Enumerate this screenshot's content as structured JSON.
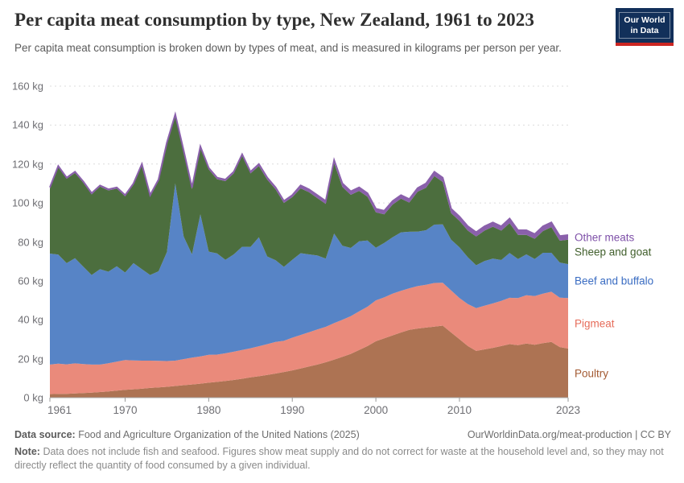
{
  "header": {
    "title": "Per capita meat consumption by type, New Zealand, 1961 to 2023",
    "subtitle": "Per capita meat consumption is broken down by types of meat, and is measured in kilograms per person per year.",
    "logo_line1": "Our World",
    "logo_line2": "in Data",
    "logo_bg": "#12305a",
    "logo_accent": "#cb2622"
  },
  "chart_data": {
    "type": "area",
    "stacked": true,
    "title": "Per capita meat consumption by type, New Zealand, 1961 to 2023",
    "unit": "kg per person per year",
    "xlabel": "",
    "ylabel": "kg",
    "ylim": [
      0,
      160
    ],
    "grid": "horizontal-dashed",
    "legend_position": "right-of-areas",
    "x_ticks": [
      1961,
      1970,
      1980,
      1990,
      2000,
      2010,
      2023
    ],
    "y_ticks": [
      {
        "value": 0,
        "label": "0 kg"
      },
      {
        "value": 20,
        "label": "20 kg"
      },
      {
        "value": 40,
        "label": "40 kg"
      },
      {
        "value": 60,
        "label": "60 kg"
      },
      {
        "value": 80,
        "label": "80 kg"
      },
      {
        "value": 100,
        "label": "100 kg"
      },
      {
        "value": 120,
        "label": "120 kg"
      },
      {
        "value": 140,
        "label": "140 kg"
      },
      {
        "value": 160,
        "label": "160 kg"
      }
    ],
    "years": [
      1961,
      1962,
      1963,
      1964,
      1965,
      1966,
      1967,
      1968,
      1969,
      1970,
      1971,
      1972,
      1973,
      1974,
      1975,
      1976,
      1977,
      1978,
      1979,
      1980,
      1981,
      1982,
      1983,
      1984,
      1985,
      1986,
      1987,
      1988,
      1989,
      1990,
      1991,
      1992,
      1993,
      1994,
      1995,
      1996,
      1997,
      1998,
      1999,
      2000,
      2001,
      2002,
      2003,
      2004,
      2005,
      2006,
      2007,
      2008,
      2009,
      2010,
      2011,
      2012,
      2013,
      2014,
      2015,
      2016,
      2017,
      2018,
      2019,
      2020,
      2021,
      2022,
      2023
    ],
    "series": [
      {
        "key": "poultry",
        "name": "Poultry",
        "fill": "#AD7353",
        "label_color": "#A35A32",
        "values": [
          1.8,
          1.9,
          2.0,
          2.2,
          2.4,
          2.6,
          2.9,
          3.2,
          3.6,
          4.0,
          4.3,
          4.6,
          5.0,
          5.3,
          5.6,
          6.0,
          6.4,
          6.8,
          7.2,
          7.7,
          8.1,
          8.6,
          9.1,
          9.7,
          10.4,
          11.0,
          11.7,
          12.4,
          13.2,
          14.0,
          15.0,
          16.0,
          17.0,
          18.2,
          19.5,
          21.0,
          22.5,
          24.5,
          26.5,
          29.0,
          30.5,
          32.0,
          33.5,
          34.8,
          35.5,
          36.0,
          36.5,
          37.0,
          33.5,
          30.0,
          26.5,
          24.0,
          24.8,
          25.6,
          26.5,
          27.5,
          27.0,
          27.8,
          27.2,
          28.0,
          28.6,
          26.0,
          25.2
        ]
      },
      {
        "key": "pigmeat",
        "name": "Pigmeat",
        "fill": "#EA8A7B",
        "label_color": "#E66C5A",
        "values": [
          15.2,
          15.6,
          15.1,
          15.4,
          14.9,
          14.4,
          14.1,
          14.5,
          14.9,
          15.3,
          14.8,
          14.4,
          14.0,
          13.6,
          13.2,
          13.0,
          13.4,
          13.8,
          14.0,
          14.3,
          14.0,
          14.2,
          14.5,
          14.8,
          15.0,
          15.4,
          15.8,
          16.2,
          16.0,
          16.8,
          17.2,
          17.6,
          18.0,
          18.2,
          18.8,
          19.0,
          19.4,
          19.8,
          20.2,
          21.0,
          21.0,
          21.4,
          21.4,
          21.4,
          21.8,
          22.0,
          22.4,
          22.0,
          21.6,
          21.2,
          21.6,
          22.0,
          22.4,
          22.8,
          23.2,
          23.8,
          24.2,
          24.8,
          25.0,
          25.4,
          25.8,
          25.4,
          26.0
        ]
      },
      {
        "key": "beef-and-buffalo",
        "name": "Beef and buffalo",
        "fill": "#5784C6",
        "label_color": "#3A6CC2",
        "values": [
          57,
          56,
          52,
          54,
          50,
          46,
          49,
          47,
          49,
          45,
          50,
          47,
          44,
          46,
          56,
          91,
          63,
          53,
          73,
          53,
          52,
          48,
          50,
          53,
          52,
          56,
          45,
          42,
          38,
          40,
          42,
          40,
          38,
          35,
          46,
          38,
          35,
          36,
          34,
          27,
          28,
          29,
          30,
          29,
          28,
          28,
          30,
          30,
          26,
          26,
          24,
          22,
          23,
          23,
          21,
          23,
          20,
          21,
          19,
          21,
          20,
          18,
          17.4
        ]
      },
      {
        "key": "sheep-and-goat",
        "name": "Sheep and goat",
        "fill": "#4C6E3E",
        "label_color": "#415F2C",
        "values": [
          33.4,
          44.9,
          43.3,
          43.8,
          43.1,
          41.4,
          42.4,
          41.7,
          39.9,
          39.1,
          40.3,
          53.4,
          40.4,
          46.5,
          55.6,
          34.7,
          43.4,
          33.6,
          34.0,
          42.2,
          38.1,
          40.4,
          41.6,
          46.7,
          37.8,
          36.6,
          39.5,
          36.4,
          32.8,
          32.2,
          33.3,
          31.9,
          29.5,
          28.1,
          36.2,
          30.2,
          27.3,
          25.9,
          22.5,
          18.2,
          14.7,
          16.8,
          17.3,
          15.0,
          20.5,
          21.8,
          24.9,
          21.8,
          13.7,
          13.6,
          13.7,
          14.8,
          15.6,
          16.4,
          15.1,
          15.3,
          12.4,
          10.0,
          10.4,
          11.2,
          13.2,
          11.2,
          12.5
        ]
      },
      {
        "key": "other-meats",
        "name": "Other meats",
        "fill": "#8A60AB",
        "label_color": "#7E50A8",
        "stroke_top": "#8A60AB",
        "values": [
          0.6,
          0.6,
          0.6,
          0.6,
          0.6,
          0.6,
          0.6,
          0.6,
          0.6,
          0.6,
          0.6,
          0.6,
          0.6,
          0.6,
          0.6,
          0.8,
          0.8,
          0.8,
          0.8,
          0.8,
          0.8,
          0.8,
          0.8,
          0.8,
          0.8,
          1.0,
          1.0,
          1.0,
          1.0,
          1.0,
          1.5,
          1.5,
          1.5,
          1.5,
          1.5,
          1.8,
          1.8,
          1.8,
          1.8,
          1.8,
          1.8,
          1.8,
          1.8,
          1.8,
          1.8,
          2.2,
          2.2,
          2.2,
          2.2,
          2.2,
          2.2,
          2.2,
          2.2,
          2.2,
          2.2,
          2.4,
          2.4,
          2.4,
          2.4,
          2.4,
          2.4,
          2.4,
          2.4
        ]
      }
    ]
  },
  "footer": {
    "source_label": "Data source:",
    "source_text": "Food and Agriculture Organization of the United Nations (2025)",
    "link": "OurWorldinData.org/meat-production | CC BY",
    "note_label": "Note:",
    "note_text": "Data does not include fish and seafood. Figures show meat supply and do not correct for waste at the household level and, so they may not directly reflect the quantity of food consumed by a given individual."
  }
}
